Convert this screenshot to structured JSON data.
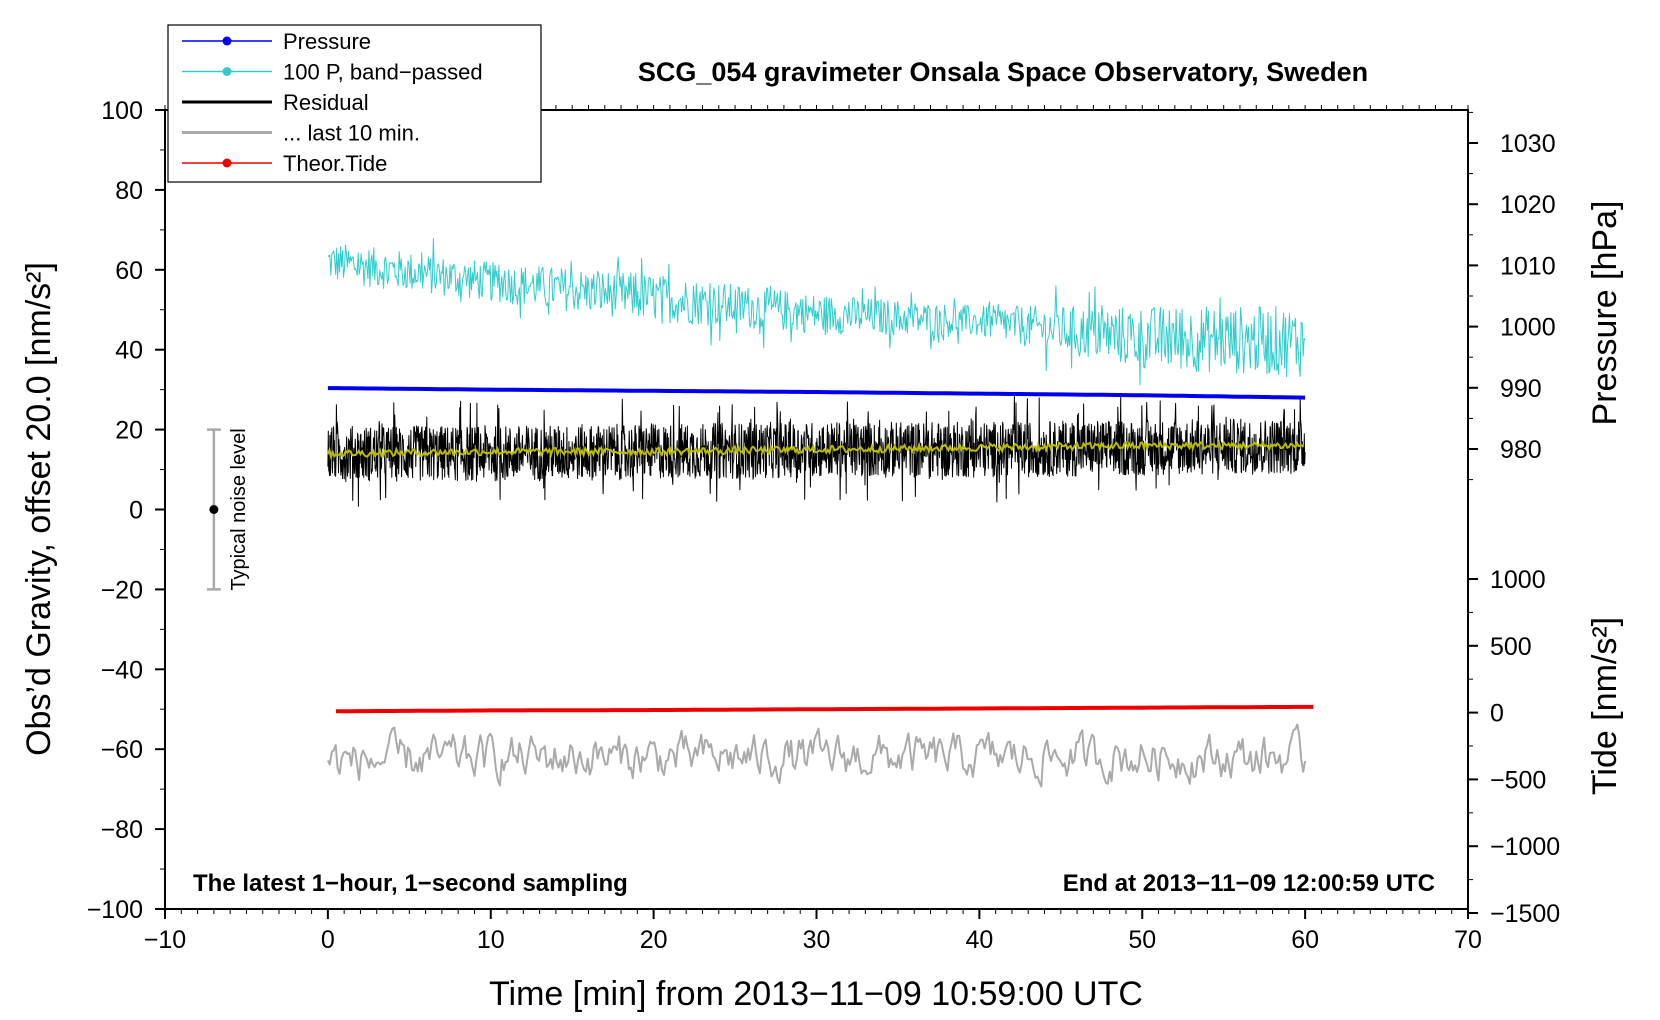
{
  "chart_data": {
    "type": "line",
    "title": "SCG_054 gravimeter Onsala Space Observatory, Sweden",
    "xlabel": "Time [min] from 2013−11−09 10:59:00 UTC",
    "ylabel": "Obs’d Gravity, offset 20.0 [nm/s²]",
    "ylabel_right_pressure": "Pressure [hPa]",
    "ylabel_right_tide": "Tide [nm/s²]",
    "xlim": [
      -10,
      70
    ],
    "ylim": [
      -100,
      100
    ],
    "pressure_axis_range": [
      970,
      1035
    ],
    "tide_axis_range": [
      -1500,
      1000
    ],
    "x_ticks": [
      "−10",
      "0",
      "10",
      "20",
      "30",
      "40",
      "50",
      "60",
      "70"
    ],
    "y_ticks": [
      "100",
      "80",
      "60",
      "40",
      "20",
      "0",
      "−20",
      "−40",
      "−60",
      "−80",
      "−100"
    ],
    "pressure_ticks": [
      "1030",
      "1020",
      "1010",
      "1000",
      "990",
      "980"
    ],
    "tide_ticks": [
      "1000",
      "500",
      "0",
      "−500",
      "−1000",
      "−1500"
    ],
    "annotation_left": "The latest 1−hour, 1−second sampling",
    "annotation_right": "End at 2013−11−09 12:00:59 UTC",
    "noise_label": "Typical noise level",
    "noise_bar": {
      "x": -7,
      "center": 0,
      "low": -20,
      "high": 20
    },
    "legend_position": "top-left",
    "legend": [
      {
        "label": "Pressure",
        "color": "#0000ee",
        "marker": true
      },
      {
        "label": "100 P, band−passed",
        "color": "#33cccc",
        "marker": true
      },
      {
        "label": "Residual",
        "color": "#000000",
        "marker": false
      },
      {
        "label": "... last 10 min.",
        "color": "#aaaaaa",
        "marker": false
      },
      {
        "label": "Theor.Tide",
        "color": "#ee0000",
        "marker": true
      }
    ],
    "series": [
      {
        "name": "Pressure",
        "color": "#0000ee",
        "x": [
          0,
          10,
          20,
          30,
          40,
          50,
          60
        ],
        "values": [
          30.4,
          30.0,
          29.7,
          29.4,
          29.0,
          28.6,
          28.0
        ]
      },
      {
        "name": "100 P, band−passed",
        "color": "#33cccc",
        "x": [
          0,
          10,
          20,
          30,
          40,
          50,
          60
        ],
        "values": [
          62,
          57,
          53,
          49,
          47,
          43,
          42
        ],
        "noise_amplitude": [
          5,
          5,
          6,
          5,
          4,
          8,
          9
        ]
      },
      {
        "name": "Residual",
        "color": "#000000",
        "x": [
          0,
          10,
          20,
          30,
          40,
          50,
          60
        ],
        "values": [
          14,
          14,
          14.5,
          15,
          15,
          15.5,
          16
        ],
        "noise_amplitude": [
          7,
          7,
          7,
          7,
          7,
          7,
          7
        ]
      },
      {
        "name": "Residual smoothed",
        "color": "#bbbb00",
        "x": [
          0,
          10,
          20,
          30,
          40,
          50,
          60
        ],
        "values": [
          14,
          14.5,
          14.5,
          15,
          15.5,
          16,
          16
        ]
      },
      {
        "name": "... last 10 min.",
        "color": "#aaaaaa",
        "x": [
          0,
          10,
          20,
          30,
          40,
          50,
          60
        ],
        "values": [
          -63,
          -62,
          -62,
          -62,
          -62,
          -62,
          -62
        ],
        "noise_amplitude": [
          6,
          6,
          6,
          6,
          6,
          6,
          6
        ]
      },
      {
        "name": "Theor.Tide",
        "color": "#ee0000",
        "x": [
          0.5,
          10,
          20,
          30,
          40,
          50,
          60.5
        ],
        "values": [
          -50.5,
          -50.3,
          -50.2,
          -50.0,
          -49.8,
          -49.6,
          -49.4
        ]
      }
    ]
  }
}
